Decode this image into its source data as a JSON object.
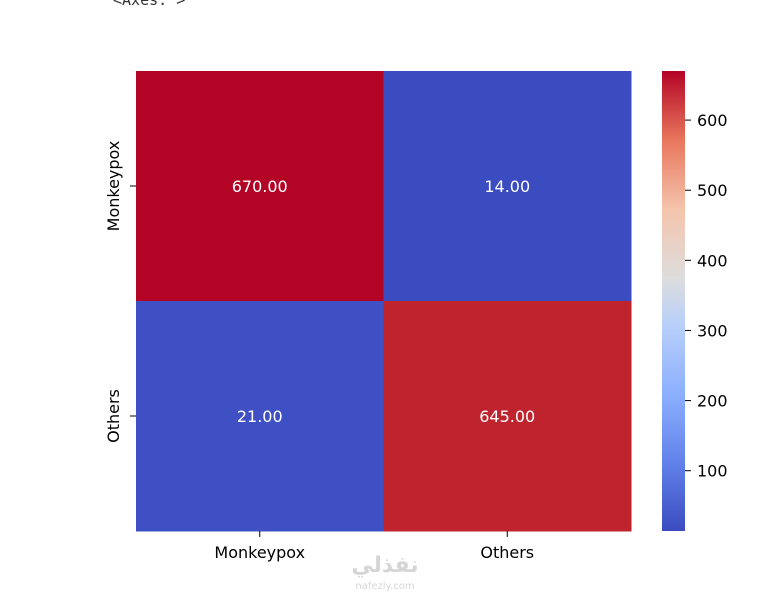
{
  "output_text": "<Axes: >",
  "watermark": {
    "arabic": "نفذلي",
    "latin": "nafezly.com"
  },
  "chart_data": {
    "type": "heatmap",
    "title": "",
    "xlabel": "",
    "ylabel": "",
    "x_categories": [
      "Monkeypox",
      "Others"
    ],
    "y_categories": [
      "Monkeypox",
      "Others"
    ],
    "values": [
      [
        670,
        14
      ],
      [
        21,
        645
      ]
    ],
    "value_labels": [
      [
        "670.00",
        "14.00"
      ],
      [
        "21.00",
        "645.00"
      ]
    ],
    "colormap": "coolwarm",
    "colorbar": {
      "range": [
        14,
        670
      ],
      "ticks": [
        100,
        200,
        300,
        400,
        500,
        600
      ]
    },
    "colors": {
      "low": "#3b4cc0",
      "mid": "#dddddd",
      "high": "#b40426"
    }
  }
}
